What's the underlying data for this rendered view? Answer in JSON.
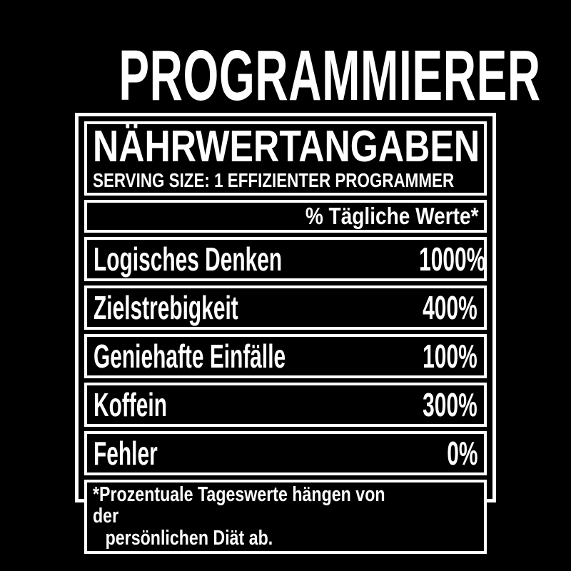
{
  "design": {
    "title": "PROGRAMMIERER",
    "label": {
      "heading": "NÄHRWERTANGABEN",
      "serving_line": "SERVING SIZE: 1 EFFIZIENTER PROGRAMMER",
      "daily_values_header": "% Tägliche Werte*",
      "rows": [
        {
          "name": "Logisches Denken",
          "value": "1000%"
        },
        {
          "name": "Zielstrebigkeit",
          "value": "400%"
        },
        {
          "name": "Geniehafte Einfälle",
          "value": "100%"
        },
        {
          "name": "Koffein",
          "value": "300%"
        },
        {
          "name": "Fehler",
          "value": "0%"
        }
      ],
      "footnote": {
        "line1": "*Prozentuale Tageswerte hängen von der",
        "line2": "persönlichen Diät ab."
      }
    },
    "colors": {
      "background": "#000000",
      "text": "#ffffff",
      "border": "#ffffff"
    }
  }
}
